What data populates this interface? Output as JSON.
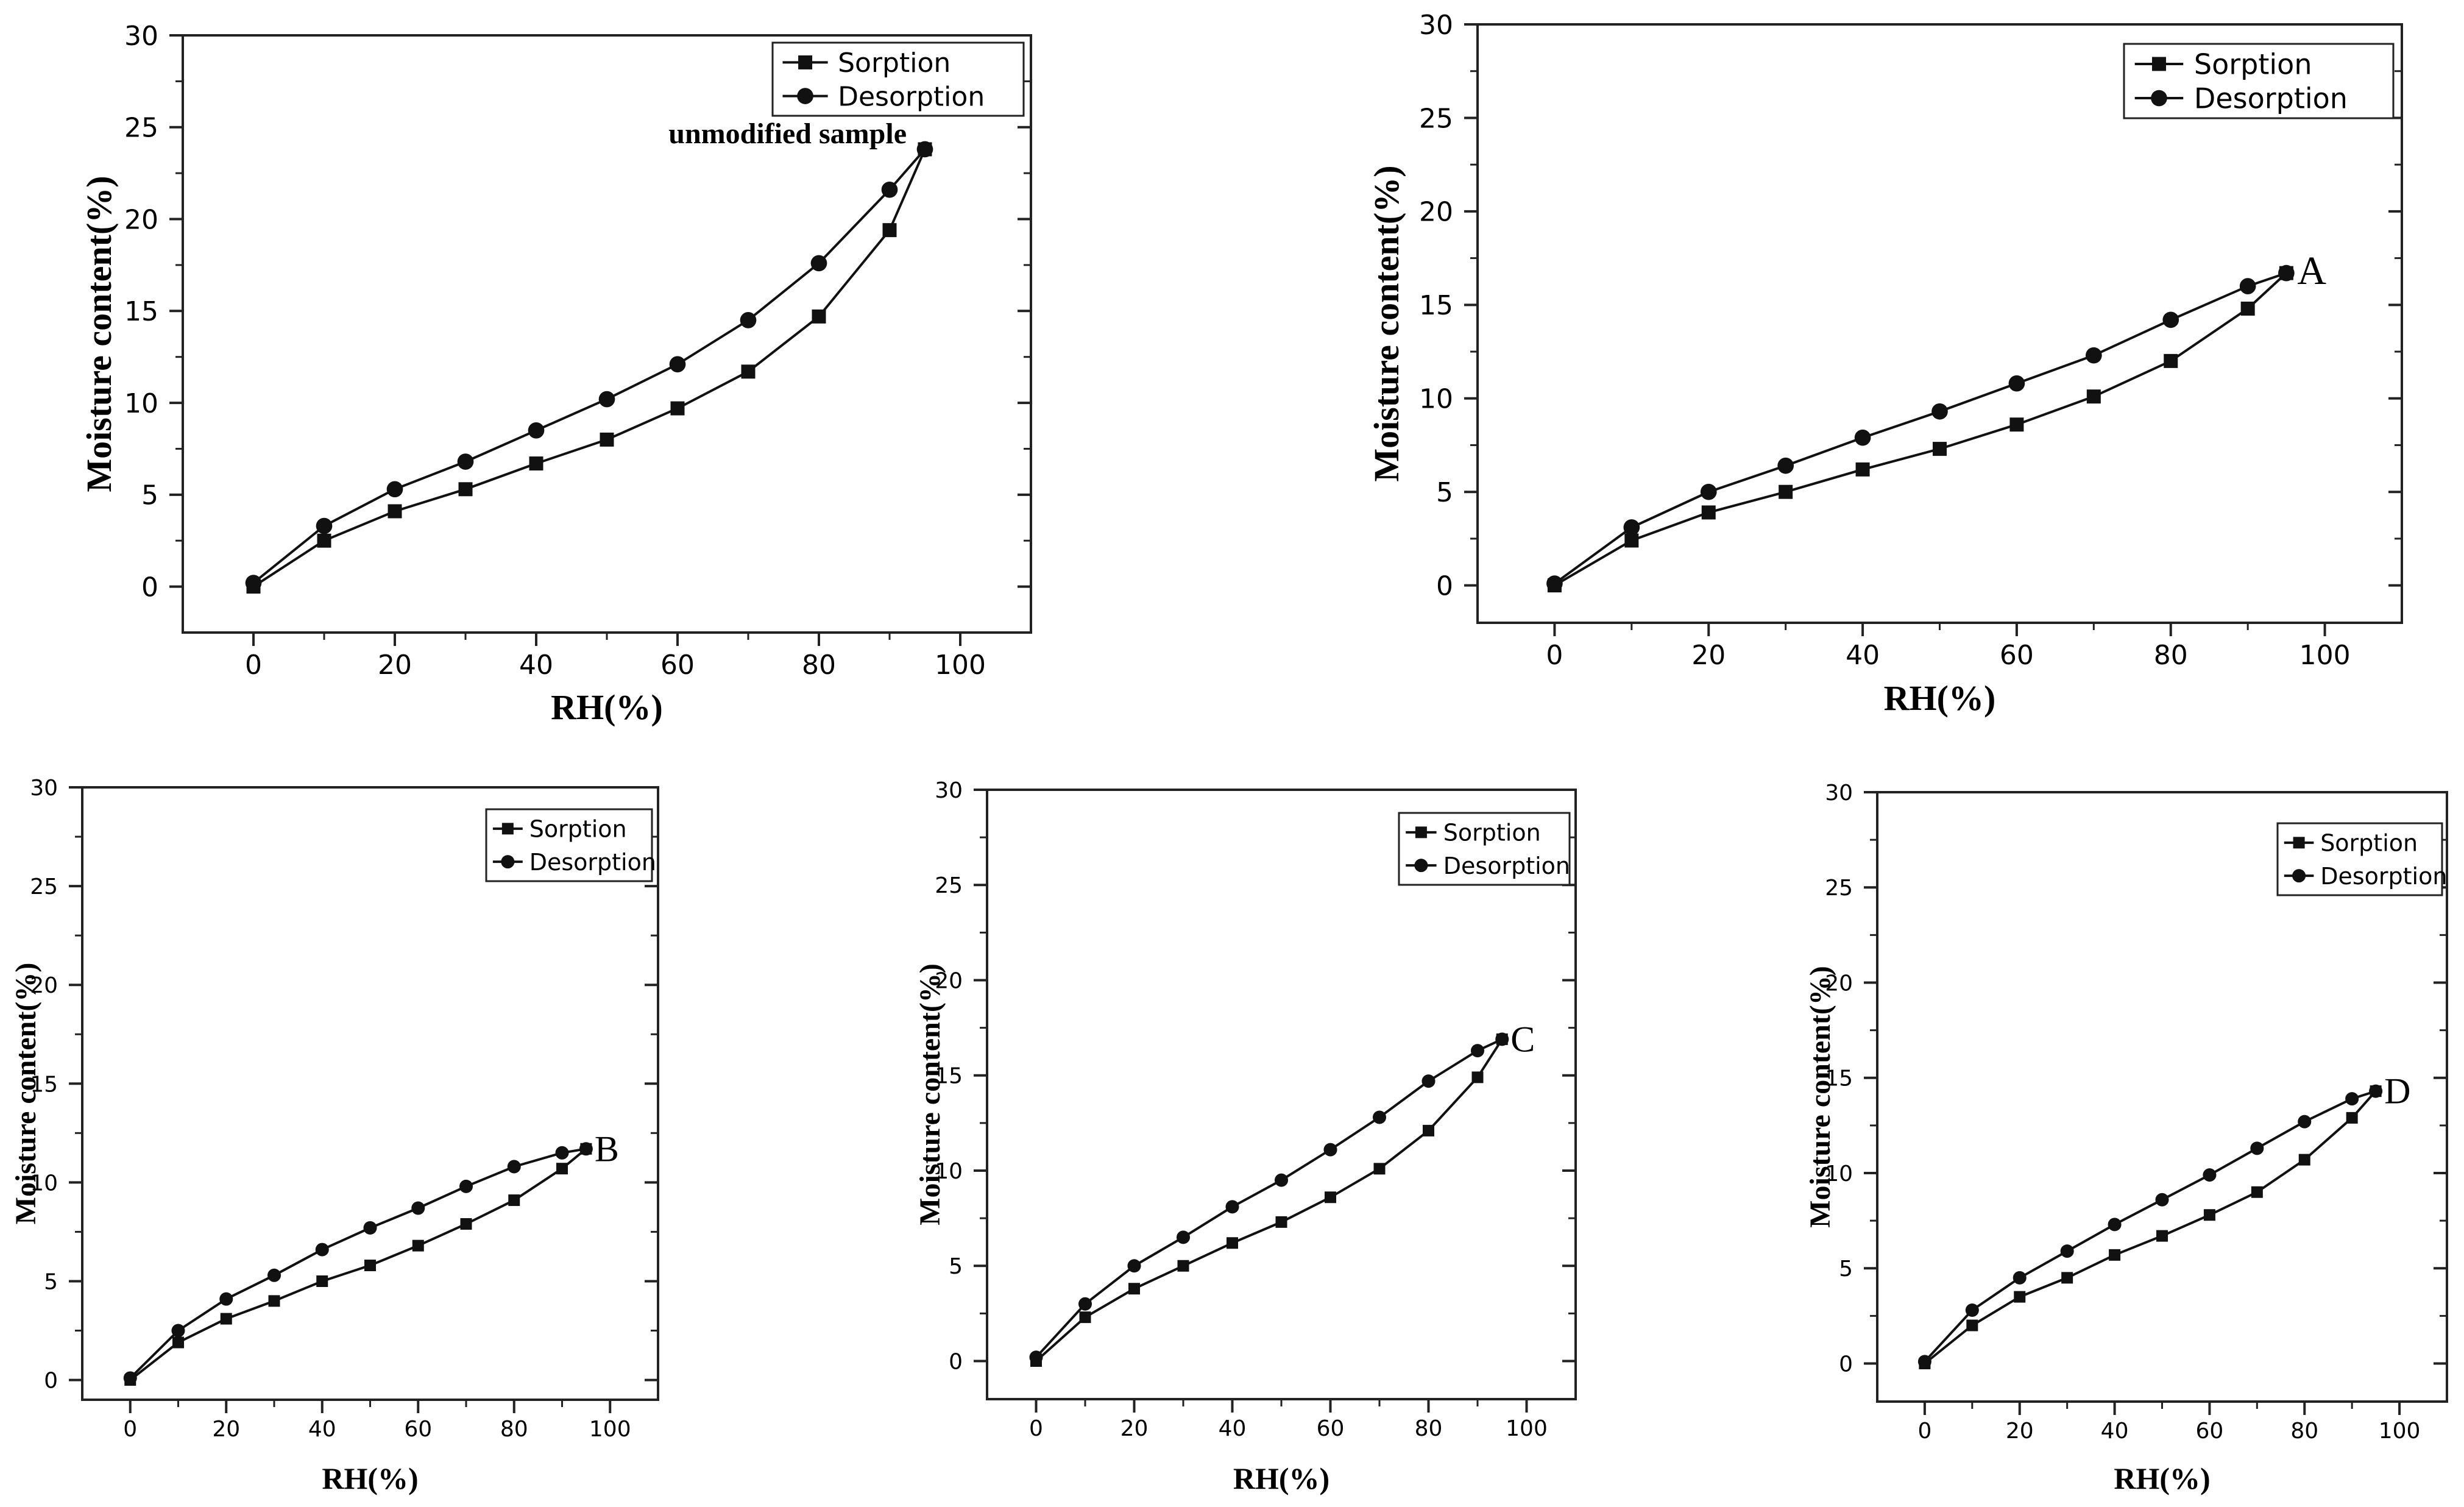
{
  "chart_data": [
    {
      "type": "line",
      "id": "unmodified",
      "title": "",
      "annotation": "unmodified sample",
      "xlabel": "RH(%)",
      "ylabel": "Moisture content(%)",
      "xlim": [
        -10,
        110
      ],
      "ylim": [
        -2.5,
        30
      ],
      "xticks": [
        0,
        20,
        40,
        60,
        80,
        100
      ],
      "yticks": [
        0,
        5,
        10,
        15,
        20,
        25,
        30
      ],
      "legend": "top-right",
      "series": [
        {
          "name": "Sorption",
          "marker": "square",
          "x": [
            0,
            10,
            20,
            30,
            40,
            50,
            60,
            70,
            80,
            90,
            95
          ],
          "values": [
            0.0,
            2.5,
            4.1,
            5.3,
            6.7,
            8.0,
            9.7,
            11.7,
            14.7,
            19.4,
            23.8
          ]
        },
        {
          "name": "Desorption",
          "marker": "circle",
          "x": [
            0,
            10,
            20,
            30,
            40,
            50,
            60,
            70,
            80,
            90,
            95
          ],
          "values": [
            0.2,
            3.3,
            5.3,
            6.8,
            8.5,
            10.2,
            12.1,
            14.5,
            17.6,
            21.6,
            23.8
          ]
        }
      ]
    },
    {
      "type": "line",
      "id": "A",
      "title": "",
      "annotation": "A",
      "xlabel": "RH(%)",
      "ylabel": "Moisture content(%)",
      "xlim": [
        -10,
        110
      ],
      "ylim": [
        -2,
        30
      ],
      "xticks": [
        0,
        20,
        40,
        60,
        80,
        100
      ],
      "yticks": [
        0,
        5,
        10,
        15,
        20,
        25,
        30
      ],
      "legend": "top-right",
      "series": [
        {
          "name": "Sorption",
          "marker": "square",
          "x": [
            0,
            10,
            20,
            30,
            40,
            50,
            60,
            70,
            80,
            90,
            95
          ],
          "values": [
            0.0,
            2.4,
            3.9,
            5.0,
            6.2,
            7.3,
            8.6,
            10.1,
            12.0,
            14.8,
            16.7
          ]
        },
        {
          "name": "Desorption",
          "marker": "circle",
          "x": [
            0,
            10,
            20,
            30,
            40,
            50,
            60,
            70,
            80,
            90,
            95
          ],
          "values": [
            0.1,
            3.1,
            5.0,
            6.4,
            7.9,
            9.3,
            10.8,
            12.3,
            14.2,
            16.0,
            16.7
          ]
        }
      ]
    },
    {
      "type": "line",
      "id": "B",
      "title": "",
      "annotation": "B",
      "xlabel": "RH(%)",
      "ylabel": "Moisture content(%)",
      "xlim": [
        -10,
        110
      ],
      "ylim": [
        -1,
        30
      ],
      "xticks": [
        0,
        20,
        40,
        60,
        80,
        100
      ],
      "yticks": [
        0,
        5,
        10,
        15,
        20,
        25,
        30
      ],
      "legend": "top-right",
      "series": [
        {
          "name": "Sorption",
          "marker": "square",
          "x": [
            0,
            10,
            20,
            30,
            40,
            50,
            60,
            70,
            80,
            90,
            95
          ],
          "values": [
            0.0,
            1.9,
            3.1,
            4.0,
            5.0,
            5.8,
            6.8,
            7.9,
            9.1,
            10.7,
            11.7
          ]
        },
        {
          "name": "Desorption",
          "marker": "circle",
          "x": [
            0,
            10,
            20,
            30,
            40,
            50,
            60,
            70,
            80,
            90,
            95
          ],
          "values": [
            0.1,
            2.5,
            4.1,
            5.3,
            6.6,
            7.7,
            8.7,
            9.8,
            10.8,
            11.5,
            11.7
          ]
        }
      ]
    },
    {
      "type": "line",
      "id": "C",
      "title": "",
      "annotation": "C",
      "xlabel": "RH(%)",
      "ylabel": "Moisture content(%)",
      "xlim": [
        -10,
        110
      ],
      "ylim": [
        -2,
        30
      ],
      "xticks": [
        0,
        20,
        40,
        60,
        80,
        100
      ],
      "yticks": [
        0,
        5,
        10,
        15,
        20,
        25,
        30
      ],
      "legend": "top-right",
      "series": [
        {
          "name": "Sorption",
          "marker": "square",
          "x": [
            0,
            10,
            20,
            30,
            40,
            50,
            60,
            70,
            80,
            90,
            95
          ],
          "values": [
            0.0,
            2.3,
            3.8,
            5.0,
            6.2,
            7.3,
            8.6,
            10.1,
            12.1,
            14.9,
            16.9
          ]
        },
        {
          "name": "Desorption",
          "marker": "circle",
          "x": [
            0,
            10,
            20,
            30,
            40,
            50,
            60,
            70,
            80,
            90,
            95
          ],
          "values": [
            0.2,
            3.0,
            5.0,
            6.5,
            8.1,
            9.5,
            11.1,
            12.8,
            14.7,
            16.3,
            16.9
          ]
        }
      ]
    },
    {
      "type": "line",
      "id": "D",
      "title": "",
      "annotation": "D",
      "xlabel": "RH(%)",
      "ylabel": "Moisture content(%)",
      "xlim": [
        -10,
        110
      ],
      "ylim": [
        -2,
        30
      ],
      "xticks": [
        0,
        20,
        40,
        60,
        80,
        100
      ],
      "yticks": [
        0,
        5,
        10,
        15,
        20,
        25,
        30
      ],
      "legend": "top-right",
      "series": [
        {
          "name": "Sorption",
          "marker": "square",
          "x": [
            0,
            10,
            20,
            30,
            40,
            50,
            60,
            70,
            80,
            90,
            95
          ],
          "values": [
            0.0,
            2.0,
            3.5,
            4.5,
            5.7,
            6.7,
            7.8,
            9.0,
            10.7,
            12.9,
            14.3
          ]
        },
        {
          "name": "Desorption",
          "marker": "circle",
          "x": [
            0,
            10,
            20,
            30,
            40,
            50,
            60,
            70,
            80,
            90,
            95
          ],
          "values": [
            0.1,
            2.8,
            4.5,
            5.9,
            7.3,
            8.6,
            9.9,
            11.3,
            12.7,
            13.9,
            14.3
          ]
        }
      ]
    }
  ]
}
